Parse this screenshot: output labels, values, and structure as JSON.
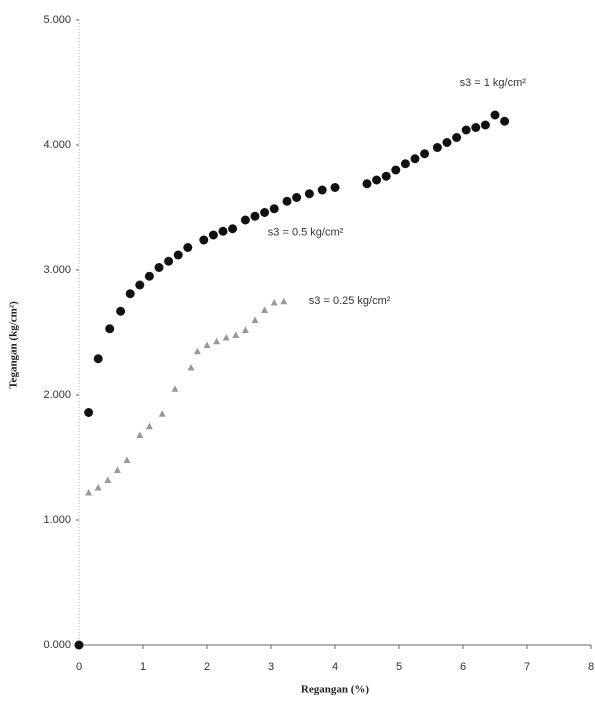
{
  "chart_data": {
    "type": "scatter",
    "x_label": "Regangan (%)",
    "y_label": "Tegangan (kg/cm²)",
    "annotation": "s3 = 0.5 kg/cm²",
    "xlim": [
      0,
      8
    ],
    "xticks": [
      0,
      1,
      2,
      3,
      4,
      5,
      6,
      7,
      8
    ],
    "ylim": [
      0,
      5
    ],
    "yticks": [
      {
        "value": 0,
        "label": "0.000"
      },
      {
        "value": 1,
        "label": "1.000"
      },
      {
        "value": 2,
        "label": "2.000"
      },
      {
        "value": 3,
        "label": "3.000"
      },
      {
        "value": 4,
        "label": "4.000"
      },
      {
        "value": 5,
        "label": "5.000"
      }
    ],
    "series": [
      {
        "name": "s3 = 1 kg/cm²",
        "color": "#111111",
        "marker": "circle",
        "x": [
          0,
          0.15,
          0.3,
          0.48,
          0.65,
          0.8,
          0.95,
          1.1,
          1.25,
          1.4,
          1.55,
          1.7,
          1.95,
          2.1,
          2.25,
          2.4,
          2.6,
          2.75,
          2.9,
          3.05,
          3.25,
          3.4,
          3.6,
          3.8,
          4.0,
          4.5,
          4.65,
          4.8,
          4.95,
          5.1,
          5.25,
          5.4,
          5.6,
          5.75,
          5.9,
          6.05,
          6.2,
          6.35,
          6.5,
          6.65
        ],
        "values": [
          0,
          1.86,
          2.29,
          2.53,
          2.67,
          2.81,
          2.88,
          2.95,
          3.02,
          3.07,
          3.12,
          3.18,
          3.24,
          3.28,
          3.31,
          3.33,
          3.4,
          3.43,
          3.46,
          3.49,
          3.55,
          3.58,
          3.61,
          3.64,
          3.66,
          3.69,
          3.72,
          3.75,
          3.8,
          3.85,
          3.89,
          3.93,
          3.98,
          4.02,
          4.06,
          4.12,
          4.14,
          4.16,
          4.24,
          4.19
        ]
      },
      {
        "name": "s3 = 0.25 kg/cm²",
        "color": "#999999",
        "marker": "triangle",
        "x": [
          0.15,
          0.3,
          0.45,
          0.6,
          0.75,
          0.95,
          1.1,
          1.3,
          1.5,
          1.75,
          1.85,
          2.0,
          2.15,
          2.3,
          2.45,
          2.6,
          2.75,
          2.9,
          3.05,
          3.2
        ],
        "values": [
          1.22,
          1.26,
          1.32,
          1.4,
          1.48,
          1.68,
          1.75,
          1.85,
          2.05,
          2.22,
          2.35,
          2.4,
          2.43,
          2.46,
          2.48,
          2.52,
          2.6,
          2.68,
          2.74,
          2.75
        ]
      }
    ]
  }
}
